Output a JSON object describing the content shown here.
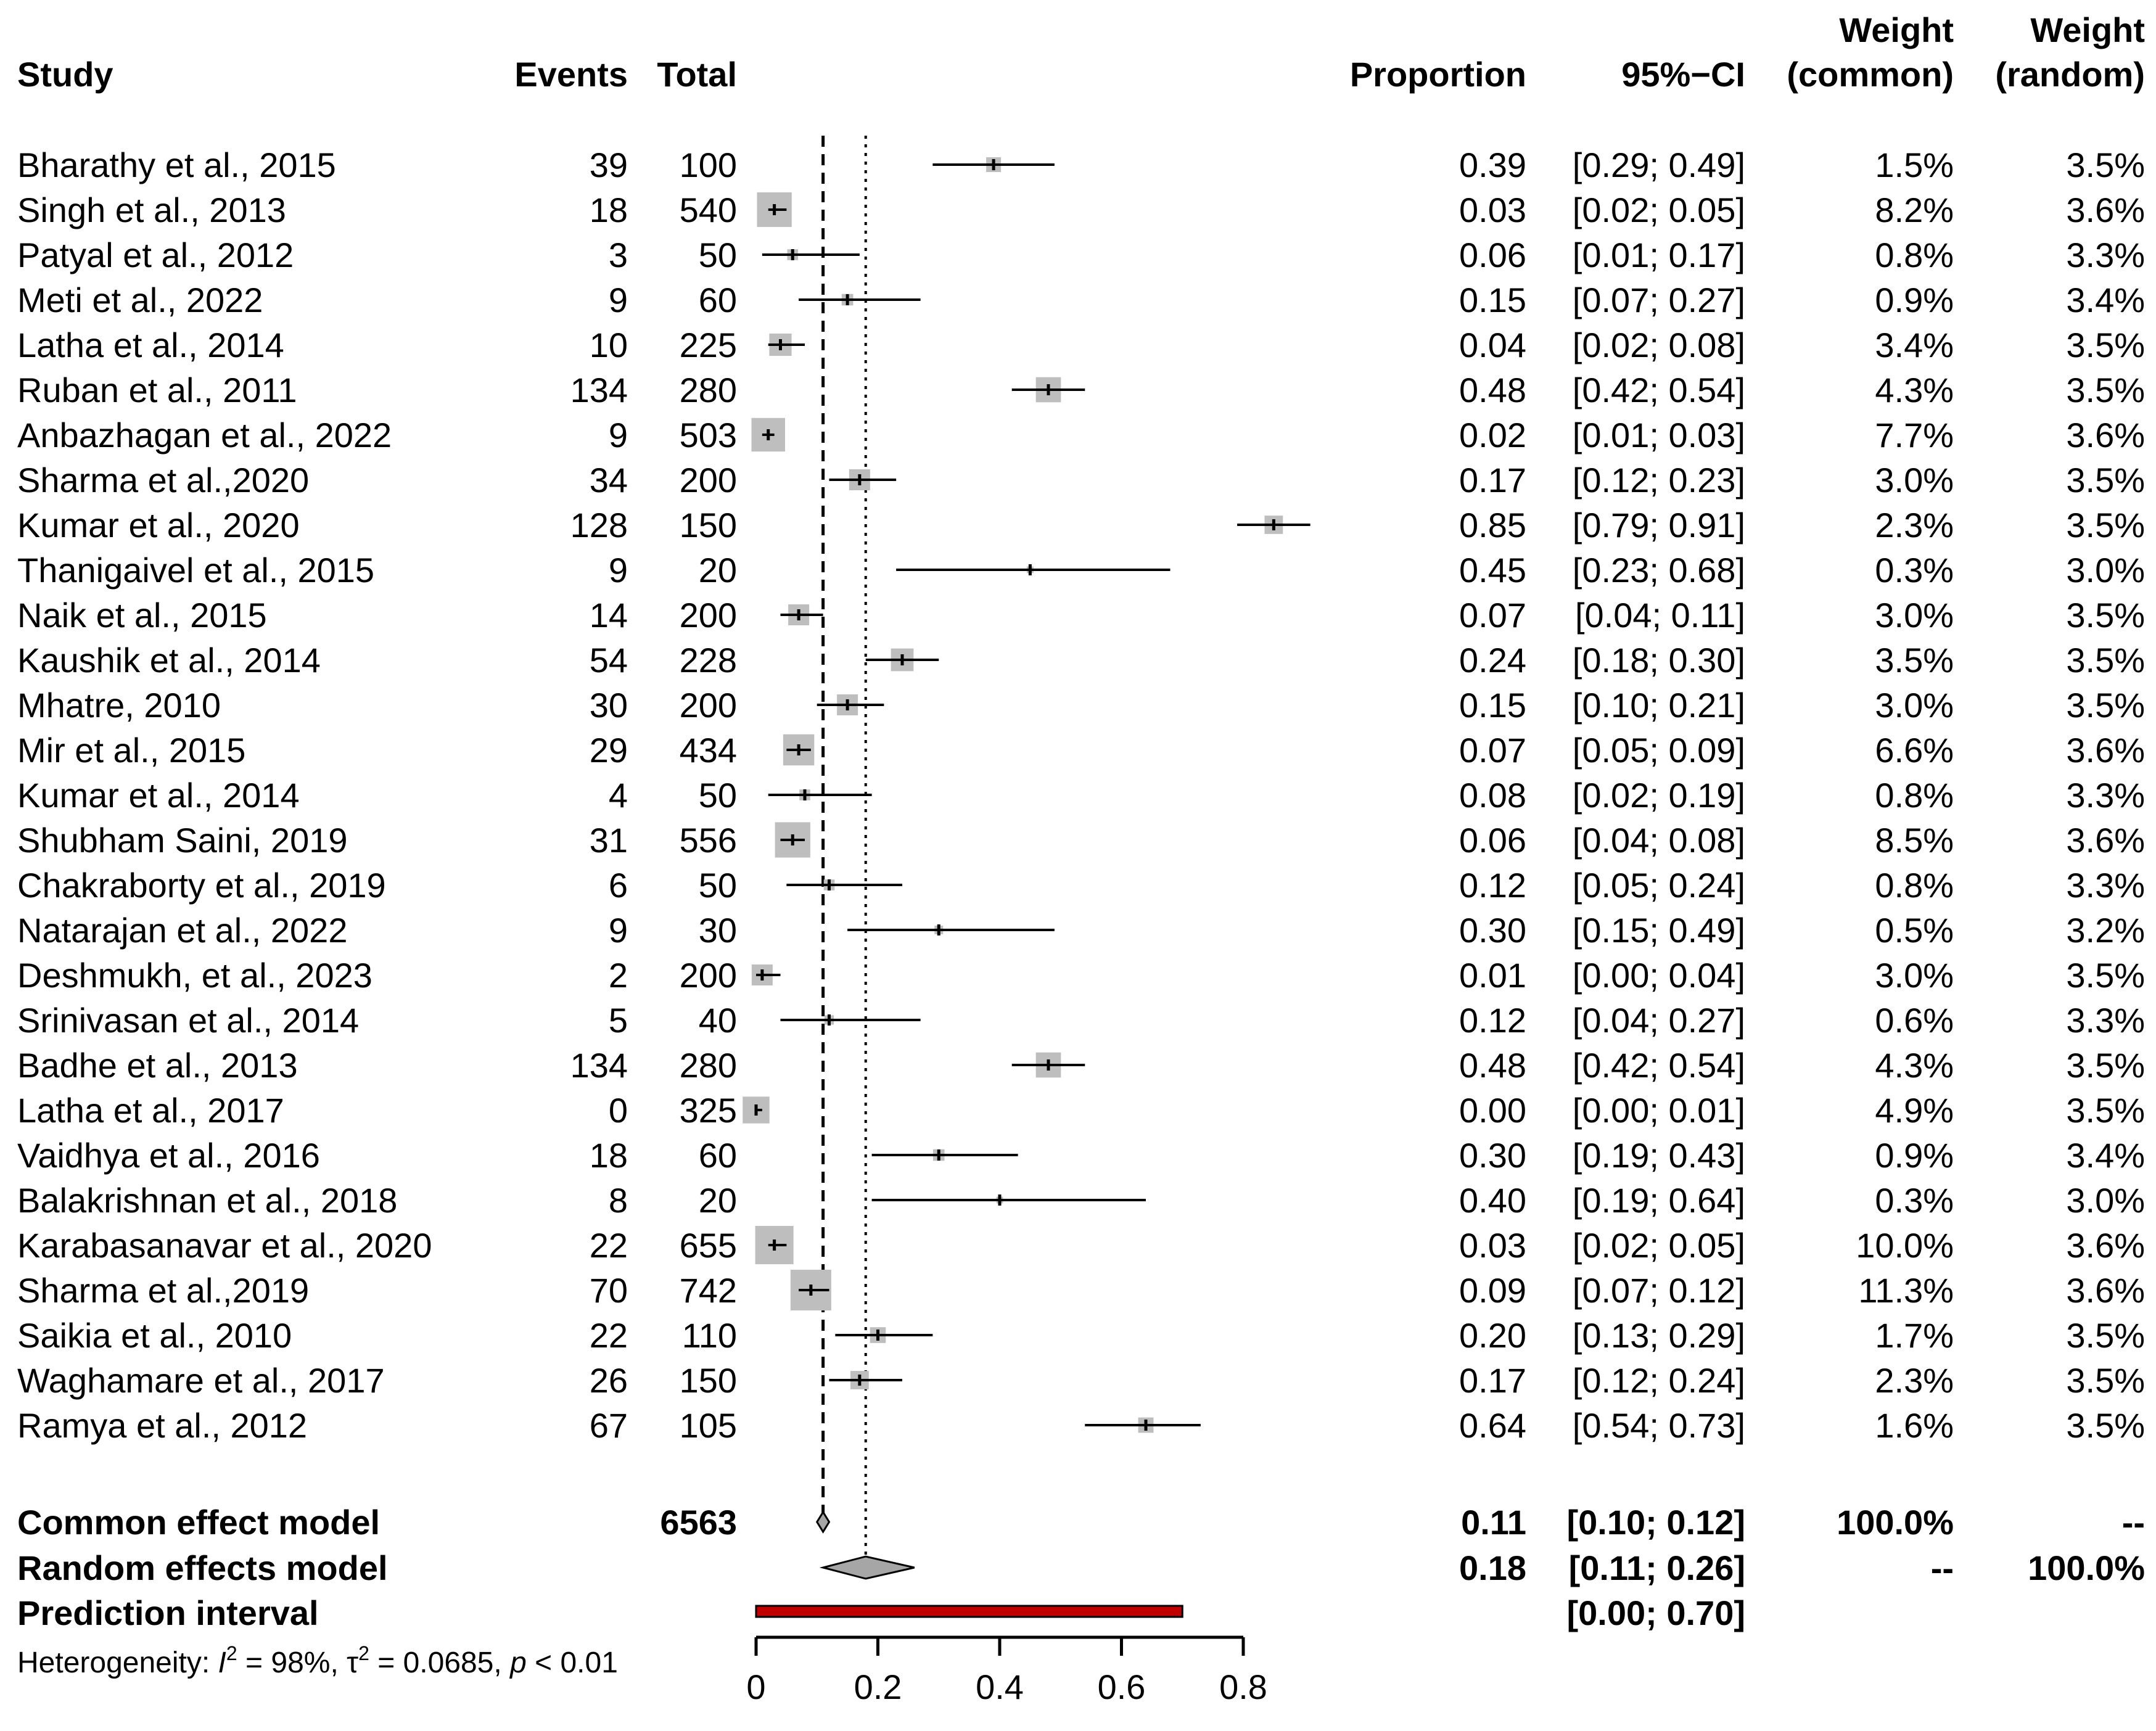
{
  "headers": {
    "study": "Study",
    "events": "Events",
    "total": "Total",
    "proportion": "Proportion",
    "ci": "95%−CI",
    "weight_common_1": "Weight",
    "weight_common_2": "(common)",
    "weight_random_1": "Weight",
    "weight_random_2": "(random)"
  },
  "chart_data": {
    "type": "forest",
    "xlim": [
      0,
      0.8
    ],
    "ticks": [
      0,
      0.2,
      0.4,
      0.6,
      0.8
    ],
    "tick_labels": [
      "0",
      "0.2",
      "0.4",
      "0.6",
      "0.8"
    ],
    "reference_lines": {
      "common": 0.11,
      "random": 0.18
    },
    "studies": [
      {
        "study": "Bharathy et al., 2015",
        "events": "39",
        "total": "100",
        "prop": 0.39,
        "lo": 0.29,
        "hi": 0.49,
        "prop_label": "0.39",
        "ci_label": "[0.29; 0.49]",
        "w_common": "1.5%",
        "w_random": "3.5%",
        "w": 1.5
      },
      {
        "study": "Singh et al., 2013",
        "events": "18",
        "total": "540",
        "prop": 0.03,
        "lo": 0.02,
        "hi": 0.05,
        "prop_label": "0.03",
        "ci_label": "[0.02; 0.05]",
        "w_common": "8.2%",
        "w_random": "3.6%",
        "w": 8.2
      },
      {
        "study": "Patyal et al., 2012",
        "events": "3",
        "total": "50",
        "prop": 0.06,
        "lo": 0.01,
        "hi": 0.17,
        "prop_label": "0.06",
        "ci_label": "[0.01; 0.17]",
        "w_common": "0.8%",
        "w_random": "3.3%",
        "w": 0.8
      },
      {
        "study": "Meti et al., 2022",
        "events": "9",
        "total": "60",
        "prop": 0.15,
        "lo": 0.07,
        "hi": 0.27,
        "prop_label": "0.15",
        "ci_label": "[0.07; 0.27]",
        "w_common": "0.9%",
        "w_random": "3.4%",
        "w": 0.9
      },
      {
        "study": "Latha et al., 2014",
        "events": "10",
        "total": "225",
        "prop": 0.04,
        "lo": 0.02,
        "hi": 0.08,
        "prop_label": "0.04",
        "ci_label": "[0.02; 0.08]",
        "w_common": "3.4%",
        "w_random": "3.5%",
        "w": 3.4
      },
      {
        "study": "Ruban et al., 2011",
        "events": "134",
        "total": "280",
        "prop": 0.48,
        "lo": 0.42,
        "hi": 0.54,
        "prop_label": "0.48",
        "ci_label": "[0.42; 0.54]",
        "w_common": "4.3%",
        "w_random": "3.5%",
        "w": 4.3
      },
      {
        "study": "Anbazhagan et al., 2022",
        "events": "9",
        "total": "503",
        "prop": 0.02,
        "lo": 0.01,
        "hi": 0.03,
        "prop_label": "0.02",
        "ci_label": "[0.01; 0.03]",
        "w_common": "7.7%",
        "w_random": "3.6%",
        "w": 7.7
      },
      {
        "study": "Sharma et al.,2020",
        "events": "34",
        "total": "200",
        "prop": 0.17,
        "lo": 0.12,
        "hi": 0.23,
        "prop_label": "0.17",
        "ci_label": "[0.12; 0.23]",
        "w_common": "3.0%",
        "w_random": "3.5%",
        "w": 3.0
      },
      {
        "study": "Kumar et al., 2020",
        "events": "128",
        "total": "150",
        "prop": 0.85,
        "lo": 0.79,
        "hi": 0.91,
        "prop_label": "0.85",
        "ci_label": "[0.79; 0.91]",
        "w_common": "2.3%",
        "w_random": "3.5%",
        "w": 2.3
      },
      {
        "study": "Thanigaivel et al., 2015",
        "events": "9",
        "total": "20",
        "prop": 0.45,
        "lo": 0.23,
        "hi": 0.68,
        "prop_label": "0.45",
        "ci_label": "[0.23; 0.68]",
        "w_common": "0.3%",
        "w_random": "3.0%",
        "w": 0.3
      },
      {
        "study": "Naik et al., 2015",
        "events": "14",
        "total": "200",
        "prop": 0.07,
        "lo": 0.04,
        "hi": 0.11,
        "prop_label": "0.07",
        "ci_label": "[0.04; 0.11]",
        "w_common": "3.0%",
        "w_random": "3.5%",
        "w": 3.0
      },
      {
        "study": "Kaushik et al., 2014",
        "events": "54",
        "total": "228",
        "prop": 0.24,
        "lo": 0.18,
        "hi": 0.3,
        "prop_label": "0.24",
        "ci_label": "[0.18; 0.30]",
        "w_common": "3.5%",
        "w_random": "3.5%",
        "w": 3.5
      },
      {
        "study": "Mhatre, 2010",
        "events": "30",
        "total": "200",
        "prop": 0.15,
        "lo": 0.1,
        "hi": 0.21,
        "prop_label": "0.15",
        "ci_label": "[0.10; 0.21]",
        "w_common": "3.0%",
        "w_random": "3.5%",
        "w": 3.0
      },
      {
        "study": "Mir et al., 2015",
        "events": "29",
        "total": "434",
        "prop": 0.07,
        "lo": 0.05,
        "hi": 0.09,
        "prop_label": "0.07",
        "ci_label": "[0.05; 0.09]",
        "w_common": "6.6%",
        "w_random": "3.6%",
        "w": 6.6
      },
      {
        "study": "Kumar et al., 2014",
        "events": "4",
        "total": "50",
        "prop": 0.08,
        "lo": 0.02,
        "hi": 0.19,
        "prop_label": "0.08",
        "ci_label": "[0.02; 0.19]",
        "w_common": "0.8%",
        "w_random": "3.3%",
        "w": 0.8
      },
      {
        "study": "Shubham Saini, 2019",
        "events": "31",
        "total": "556",
        "prop": 0.06,
        "lo": 0.04,
        "hi": 0.08,
        "prop_label": "0.06",
        "ci_label": "[0.04; 0.08]",
        "w_common": "8.5%",
        "w_random": "3.6%",
        "w": 8.5
      },
      {
        "study": "Chakraborty et al., 2019",
        "events": "6",
        "total": "50",
        "prop": 0.12,
        "lo": 0.05,
        "hi": 0.24,
        "prop_label": "0.12",
        "ci_label": "[0.05; 0.24]",
        "w_common": "0.8%",
        "w_random": "3.3%",
        "w": 0.8
      },
      {
        "study": "Natarajan et al., 2022",
        "events": "9",
        "total": "30",
        "prop": 0.3,
        "lo": 0.15,
        "hi": 0.49,
        "prop_label": "0.30",
        "ci_label": "[0.15; 0.49]",
        "w_common": "0.5%",
        "w_random": "3.2%",
        "w": 0.5
      },
      {
        "study": "Deshmukh, et al., 2023",
        "events": "2",
        "total": "200",
        "prop": 0.01,
        "lo": 0.0,
        "hi": 0.04,
        "prop_label": "0.01",
        "ci_label": "[0.00; 0.04]",
        "w_common": "3.0%",
        "w_random": "3.5%",
        "w": 3.0
      },
      {
        "study": "Srinivasan et al., 2014",
        "events": "5",
        "total": "40",
        "prop": 0.12,
        "lo": 0.04,
        "hi": 0.27,
        "prop_label": "0.12",
        "ci_label": "[0.04; 0.27]",
        "w_common": "0.6%",
        "w_random": "3.3%",
        "w": 0.6
      },
      {
        "study": "Badhe et al., 2013",
        "events": "134",
        "total": "280",
        "prop": 0.48,
        "lo": 0.42,
        "hi": 0.54,
        "prop_label": "0.48",
        "ci_label": "[0.42; 0.54]",
        "w_common": "4.3%",
        "w_random": "3.5%",
        "w": 4.3
      },
      {
        "study": "Latha et al., 2017",
        "events": "0",
        "total": "325",
        "prop": 0.0,
        "lo": 0.0,
        "hi": 0.01,
        "prop_label": "0.00",
        "ci_label": "[0.00; 0.01]",
        "w_common": "4.9%",
        "w_random": "3.5%",
        "w": 4.9
      },
      {
        "study": "Vaidhya et al., 2016",
        "events": "18",
        "total": "60",
        "prop": 0.3,
        "lo": 0.19,
        "hi": 0.43,
        "prop_label": "0.30",
        "ci_label": "[0.19; 0.43]",
        "w_common": "0.9%",
        "w_random": "3.4%",
        "w": 0.9
      },
      {
        "study": "Balakrishnan et al., 2018",
        "events": "8",
        "total": "20",
        "prop": 0.4,
        "lo": 0.19,
        "hi": 0.64,
        "prop_label": "0.40",
        "ci_label": "[0.19; 0.64]",
        "w_common": "0.3%",
        "w_random": "3.0%",
        "w": 0.3
      },
      {
        "study": "Karabasanavar et al., 2020",
        "events": "22",
        "total": "655",
        "prop": 0.03,
        "lo": 0.02,
        "hi": 0.05,
        "prop_label": "0.03",
        "ci_label": "[0.02; 0.05]",
        "w_common": "10.0%",
        "w_random": "3.6%",
        "w": 10.0
      },
      {
        "study": "Sharma et al.,2019",
        "events": "70",
        "total": "742",
        "prop": 0.09,
        "lo": 0.07,
        "hi": 0.12,
        "prop_label": "0.09",
        "ci_label": "[0.07; 0.12]",
        "w_common": "11.3%",
        "w_random": "3.6%",
        "w": 11.3
      },
      {
        "study": "Saikia et al., 2010",
        "events": "22",
        "total": "110",
        "prop": 0.2,
        "lo": 0.13,
        "hi": 0.29,
        "prop_label": "0.20",
        "ci_label": "[0.13; 0.29]",
        "w_common": "1.7%",
        "w_random": "3.5%",
        "w": 1.7
      },
      {
        "study": "Waghamare et al., 2017",
        "events": "26",
        "total": "150",
        "prop": 0.17,
        "lo": 0.12,
        "hi": 0.24,
        "prop_label": "0.17",
        "ci_label": "[0.12; 0.24]",
        "w_common": "2.3%",
        "w_random": "3.5%",
        "w": 2.3
      },
      {
        "study": "Ramya et al., 2012",
        "events": "67",
        "total": "105",
        "prop": 0.64,
        "lo": 0.54,
        "hi": 0.73,
        "prop_label": "0.64",
        "ci_label": "[0.54; 0.73]",
        "w_common": "1.6%",
        "w_random": "3.5%",
        "w": 1.6
      }
    ],
    "common": {
      "label": "Common effect model",
      "total": "6563",
      "prop": 0.11,
      "lo": 0.1,
      "hi": 0.12,
      "prop_label": "0.11",
      "ci_label": "[0.10; 0.12]",
      "w_common": "100.0%",
      "w_random": "--"
    },
    "random": {
      "label": "Random effects model",
      "prop": 0.18,
      "lo": 0.11,
      "hi": 0.26,
      "prop_label": "0.18",
      "ci_label": "[0.11; 0.26]",
      "w_common": "--",
      "w_random": "100.0%"
    },
    "prediction": {
      "label": "Prediction interval",
      "lo": 0.0,
      "hi": 0.7,
      "ci_label": "[0.00; 0.70]"
    },
    "heterogeneity": {
      "prefix": "Heterogeneity: ",
      "i2_symbol": "I",
      "i2_value": " = 98%, ",
      "tau_symbol": "τ",
      "tau_value": " = 0.0685, ",
      "p_symbol": "p",
      "p_value": " < 0.01"
    },
    "colors": {
      "prediction_fill": "#c00000",
      "square_fill": "#bebebe",
      "diamond_fill": "#a6a6a6"
    }
  }
}
